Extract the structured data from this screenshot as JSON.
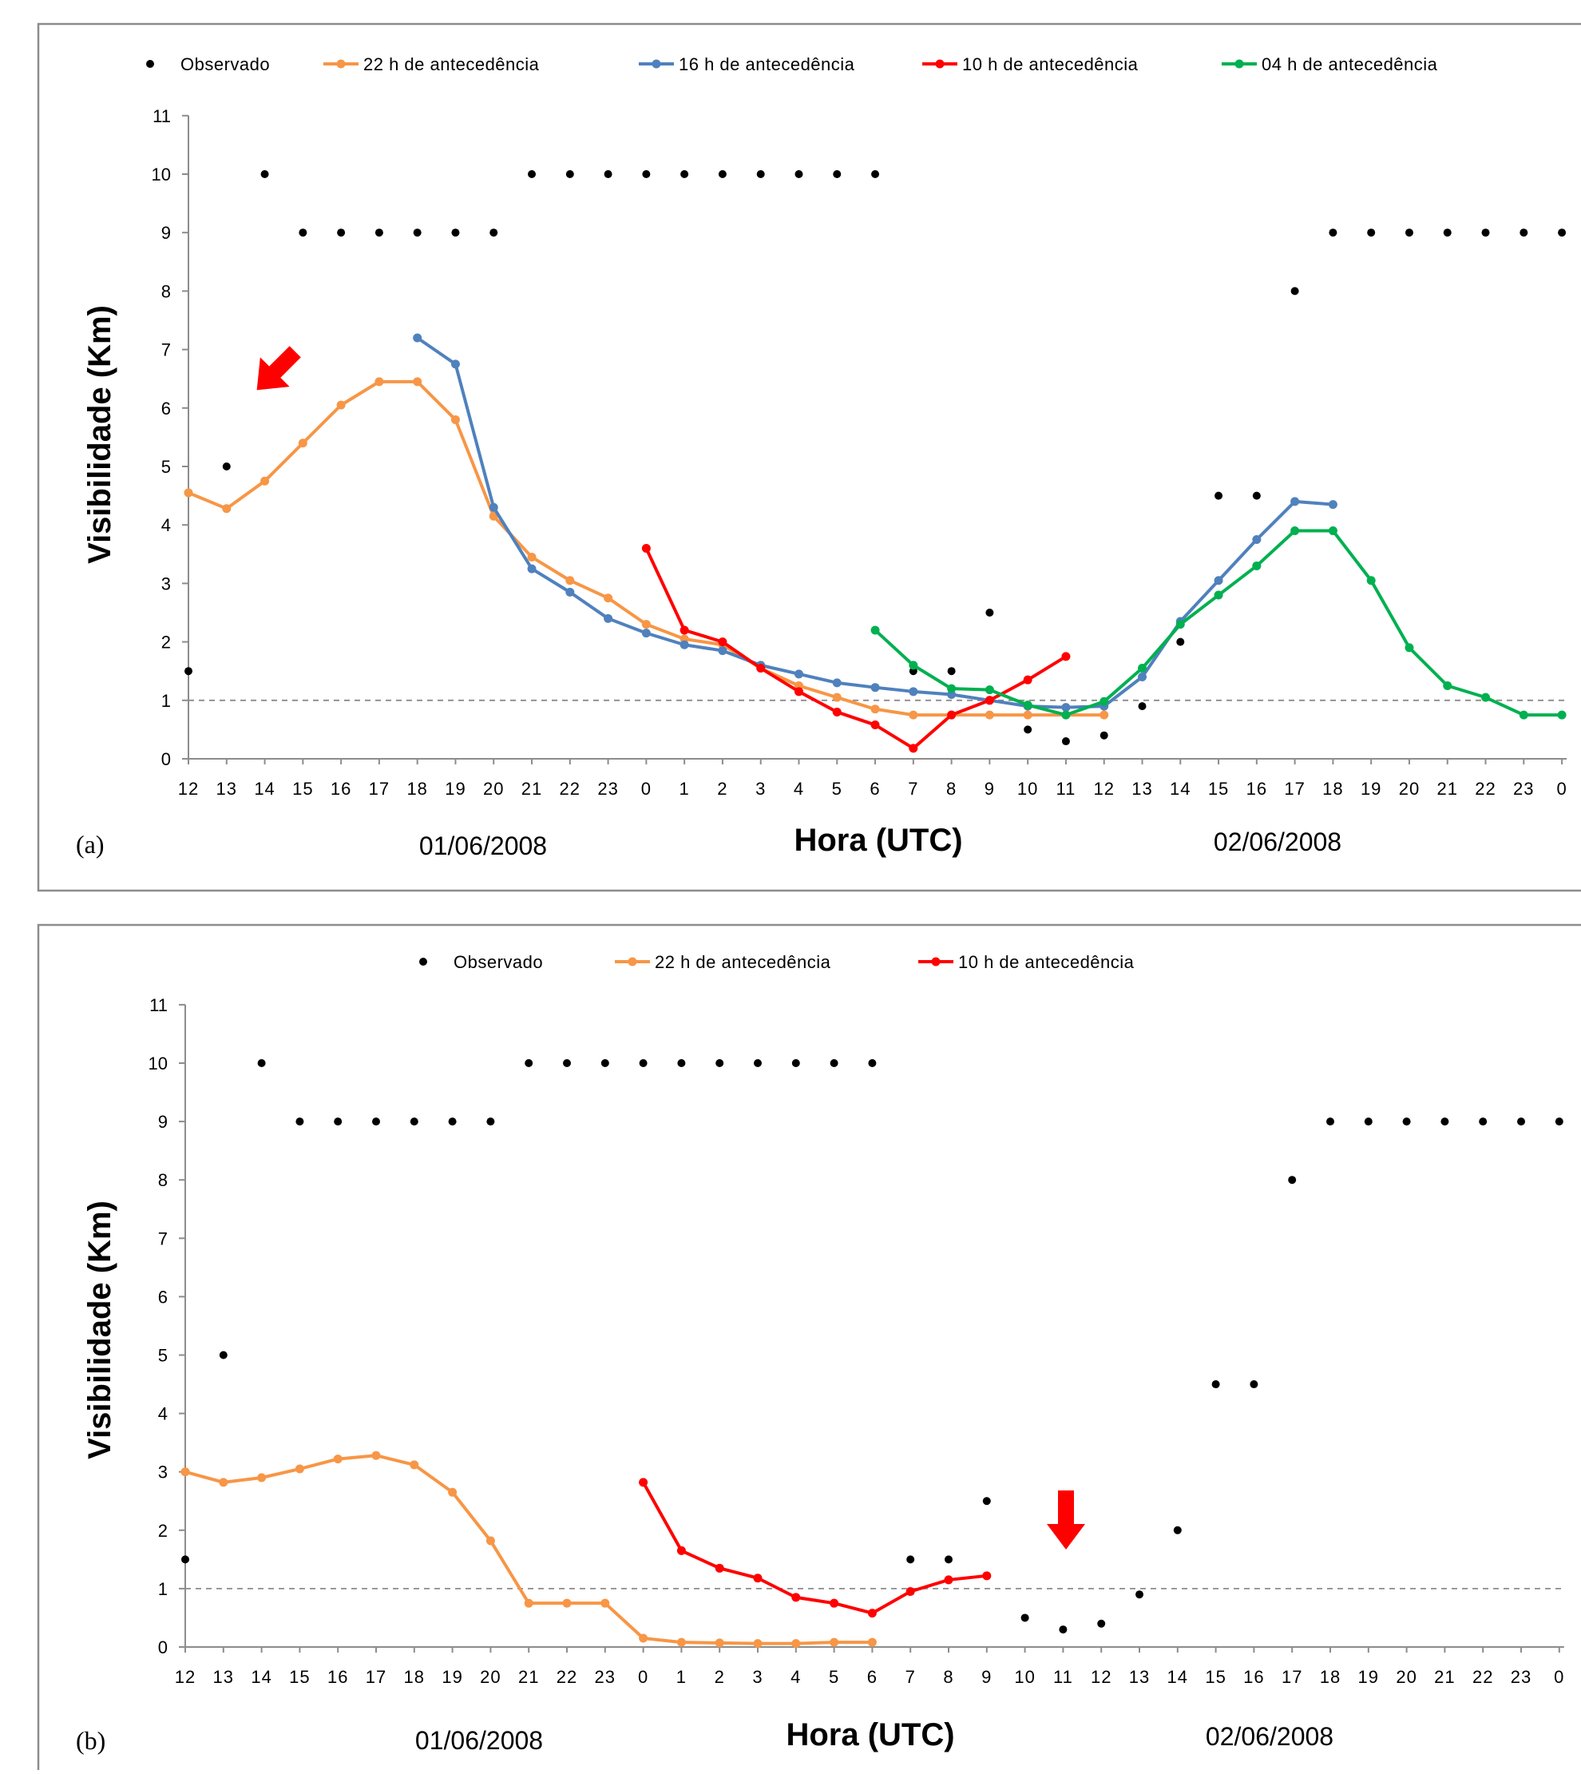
{
  "chart_data": [
    {
      "type": "line",
      "panel_label": "(a)",
      "xlabel": "Hora (UTC)",
      "ylabel": "Visibilidade (Km)",
      "ylim": [
        0,
        11
      ],
      "yticks": [
        "0",
        "1",
        "2",
        "3",
        "4",
        "5",
        "6",
        "7",
        "8",
        "9",
        "10",
        "11"
      ],
      "categories": [
        "12",
        "13",
        "14",
        "15",
        "16",
        "17",
        "18",
        "19",
        "20",
        "21",
        "22",
        "23",
        "0",
        "1",
        "2",
        "3",
        "4",
        "5",
        "6",
        "7",
        "8",
        "9",
        "10",
        "11",
        "12",
        "13",
        "14",
        "15",
        "16",
        "17",
        "18",
        "19",
        "20",
        "21",
        "22",
        "23",
        "0"
      ],
      "date_labels": [
        "01/06/2008",
        "02/06/2008"
      ],
      "reference_line": 1,
      "legend_position": "top",
      "series": [
        {
          "name": "Observado",
          "kind": "points",
          "color": "#000000",
          "values": [
            1.5,
            5,
            10,
            9,
            9,
            9,
            9,
            9,
            9,
            10,
            10,
            10,
            10,
            10,
            10,
            10,
            10,
            10,
            10,
            1.5,
            1.5,
            2.5,
            0.5,
            0.3,
            0.4,
            0.9,
            2,
            4.5,
            4.5,
            8,
            9,
            9,
            9,
            9,
            9,
            9,
            9
          ]
        },
        {
          "name": "22 h de antecedência",
          "kind": "line",
          "color": "#f79646",
          "values": [
            4.55,
            4.28,
            4.75,
            5.4,
            6.05,
            6.45,
            6.45,
            5.8,
            4.15,
            3.45,
            3.05,
            2.75,
            2.3,
            2.05,
            1.95,
            1.55,
            1.25,
            1.05,
            0.85,
            0.75,
            0.75,
            0.75,
            0.75,
            0.75,
            0.75,
            null,
            null,
            null,
            null,
            null,
            null,
            null,
            null,
            null,
            null,
            null,
            null
          ]
        },
        {
          "name": "16 h de antecedência",
          "kind": "line",
          "color": "#4f81bd",
          "values": [
            null,
            null,
            null,
            null,
            null,
            null,
            7.2,
            6.75,
            4.3,
            3.25,
            2.85,
            2.4,
            2.15,
            1.95,
            1.85,
            1.6,
            1.45,
            1.3,
            1.22,
            1.15,
            1.1,
            1.0,
            0.9,
            0.88,
            0.9,
            1.4,
            2.35,
            3.05,
            3.75,
            4.4,
            4.35,
            null,
            null,
            null,
            null,
            null,
            null
          ]
        },
        {
          "name": "10 h de antecedência",
          "kind": "line",
          "color": "#ff0000",
          "values": [
            null,
            null,
            null,
            null,
            null,
            null,
            null,
            null,
            null,
            null,
            null,
            null,
            3.6,
            2.2,
            2.0,
            1.55,
            1.15,
            0.8,
            0.58,
            0.18,
            0.75,
            1.0,
            1.35,
            1.75,
            null,
            null,
            null,
            null,
            null,
            null,
            null,
            null,
            null,
            null,
            null,
            null,
            null
          ]
        },
        {
          "name": "04 h de antecedência",
          "kind": "line",
          "color": "#00b050",
          "values": [
            null,
            null,
            null,
            null,
            null,
            null,
            null,
            null,
            null,
            null,
            null,
            null,
            null,
            null,
            null,
            null,
            null,
            null,
            2.2,
            1.6,
            1.2,
            1.18,
            0.92,
            0.75,
            0.98,
            1.55,
            2.3,
            2.8,
            3.3,
            3.9,
            3.9,
            3.05,
            1.9,
            1.25,
            1.05,
            0.75,
            0.75
          ]
        }
      ]
    },
    {
      "type": "line",
      "panel_label": "(b)",
      "xlabel": "Hora (UTC)",
      "ylabel": "Visibilidade (Km)",
      "ylim": [
        0,
        11
      ],
      "yticks": [
        "0",
        "1",
        "2",
        "3",
        "4",
        "5",
        "6",
        "7",
        "8",
        "9",
        "10",
        "11"
      ],
      "categories": [
        "12",
        "13",
        "14",
        "15",
        "16",
        "17",
        "18",
        "19",
        "20",
        "21",
        "22",
        "23",
        "0",
        "1",
        "2",
        "3",
        "4",
        "5",
        "6",
        "7",
        "8",
        "9",
        "10",
        "11",
        "12",
        "13",
        "14",
        "15",
        "16",
        "17",
        "18",
        "19",
        "20",
        "21",
        "22",
        "23",
        "0"
      ],
      "date_labels": [
        "01/06/2008",
        "02/06/2008"
      ],
      "reference_line": 1,
      "legend_position": "top",
      "series": [
        {
          "name": "Observado",
          "kind": "points",
          "color": "#000000",
          "values": [
            1.5,
            5,
            10,
            9,
            9,
            9,
            9,
            9,
            9,
            10,
            10,
            10,
            10,
            10,
            10,
            10,
            10,
            10,
            10,
            1.5,
            1.5,
            2.5,
            0.5,
            0.3,
            0.4,
            0.9,
            2,
            4.5,
            4.5,
            8,
            9,
            9,
            9,
            9,
            9,
            9,
            9
          ]
        },
        {
          "name": "22 h de antecedência",
          "kind": "line",
          "color": "#f79646",
          "values": [
            3.0,
            2.82,
            2.9,
            3.05,
            3.22,
            3.28,
            3.12,
            2.65,
            1.82,
            0.75,
            0.75,
            0.75,
            0.15,
            0.08,
            0.07,
            0.06,
            0.06,
            0.08,
            0.08,
            null,
            null,
            null,
            null,
            null,
            null,
            null,
            null,
            null,
            null,
            null,
            null,
            null,
            null,
            null,
            null,
            null,
            null
          ]
        },
        {
          "name": "10 h de antecedência",
          "kind": "line",
          "color": "#ff0000",
          "values": [
            null,
            null,
            null,
            null,
            null,
            null,
            null,
            null,
            null,
            null,
            null,
            null,
            2.82,
            1.65,
            1.35,
            1.18,
            0.85,
            0.75,
            0.58,
            0.95,
            1.15,
            1.22,
            null,
            null,
            null,
            null,
            null,
            null,
            null,
            null,
            null,
            null,
            null,
            null,
            null,
            null,
            null
          ]
        }
      ]
    }
  ]
}
